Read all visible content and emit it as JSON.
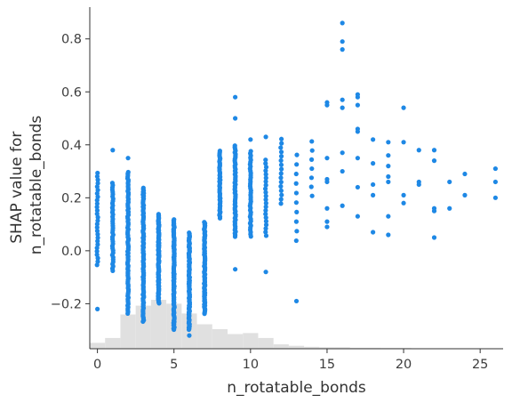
{
  "chart_data": {
    "type": "scatter",
    "xlabel": "n_rotatable_bonds",
    "ylabel_lines": [
      "SHAP value for",
      "n_rotatable_bonds"
    ],
    "xlim": [
      -0.5,
      26.5
    ],
    "ylim": [
      -0.37,
      0.92
    ],
    "x_ticks": [
      0,
      5,
      10,
      15,
      20,
      25
    ],
    "x_tick_labels": [
      "0",
      "5",
      "10",
      "15",
      "20",
      "25"
    ],
    "y_ticks": [
      -0.2,
      0.0,
      0.2,
      0.4,
      0.6,
      0.8
    ],
    "y_tick_labels": [
      "−0.2",
      "0.0",
      "0.2",
      "0.4",
      "0.6",
      "0.8"
    ],
    "grid": false,
    "point_color": "#1e88e5",
    "histogram_color": "#e0e0e0",
    "point_groups": [
      {
        "x": 0,
        "y_min": -0.06,
        "y_max": 0.3,
        "n": 28,
        "outliers": [
          -0.22
        ]
      },
      {
        "x": 1,
        "y_min": -0.08,
        "y_max": 0.26,
        "n": 40,
        "outliers": [
          0.38
        ]
      },
      {
        "x": 2,
        "y_min": -0.24,
        "y_max": 0.3,
        "n": 90,
        "outliers": [
          0.35
        ]
      },
      {
        "x": 3,
        "y_min": -0.27,
        "y_max": 0.24,
        "n": 100,
        "outliers": []
      },
      {
        "x": 4,
        "y_min": -0.2,
        "y_max": 0.14,
        "n": 100,
        "outliers": []
      },
      {
        "x": 5,
        "y_min": -0.3,
        "y_max": 0.12,
        "n": 100,
        "outliers": []
      },
      {
        "x": 6,
        "y_min": -0.3,
        "y_max": 0.07,
        "n": 90,
        "outliers": [
          -0.32
        ]
      },
      {
        "x": 7,
        "y_min": -0.24,
        "y_max": 0.11,
        "n": 80,
        "outliers": []
      },
      {
        "x": 8,
        "y_min": 0.12,
        "y_max": 0.38,
        "n": 45,
        "outliers": []
      },
      {
        "x": 9,
        "y_min": 0.05,
        "y_max": 0.4,
        "n": 55,
        "outliers": [
          0.5,
          0.58,
          -0.07
        ]
      },
      {
        "x": 10,
        "y_min": 0.05,
        "y_max": 0.38,
        "n": 40,
        "outliers": [
          0.42
        ]
      },
      {
        "x": 11,
        "y_min": 0.05,
        "y_max": 0.35,
        "n": 22,
        "outliers": [
          0.43,
          -0.08
        ]
      },
      {
        "x": 12,
        "y_min": 0.17,
        "y_max": 0.43,
        "n": 16,
        "outliers": []
      },
      {
        "x": 13,
        "y_min": 0.02,
        "y_max": 0.38,
        "n": 10,
        "outliers": [
          -0.19
        ]
      },
      {
        "x": 14,
        "y_min": 0.19,
        "y_max": 0.43,
        "n": 7,
        "outliers": []
      }
    ],
    "sparse_points": [
      [
        15,
        0.56
      ],
      [
        15,
        0.55
      ],
      [
        15,
        0.35
      ],
      [
        15,
        0.27
      ],
      [
        15,
        0.26
      ],
      [
        15,
        0.16
      ],
      [
        15,
        0.11
      ],
      [
        15,
        0.09
      ],
      [
        16,
        0.86
      ],
      [
        16,
        0.79
      ],
      [
        16,
        0.76
      ],
      [
        16,
        0.57
      ],
      [
        16,
        0.54
      ],
      [
        16,
        0.37
      ],
      [
        16,
        0.3
      ],
      [
        16,
        0.17
      ],
      [
        17,
        0.59
      ],
      [
        17,
        0.58
      ],
      [
        17,
        0.55
      ],
      [
        17,
        0.46
      ],
      [
        17,
        0.45
      ],
      [
        17,
        0.35
      ],
      [
        17,
        0.24
      ],
      [
        17,
        0.13
      ],
      [
        18,
        0.42
      ],
      [
        18,
        0.33
      ],
      [
        18,
        0.25
      ],
      [
        18,
        0.21
      ],
      [
        18,
        0.07
      ],
      [
        19,
        0.41
      ],
      [
        19,
        0.36
      ],
      [
        19,
        0.32
      ],
      [
        19,
        0.28
      ],
      [
        19,
        0.26
      ],
      [
        19,
        0.13
      ],
      [
        19,
        0.06
      ],
      [
        20,
        0.54
      ],
      [
        20,
        0.41
      ],
      [
        20,
        0.21
      ],
      [
        20,
        0.18
      ],
      [
        21,
        0.38
      ],
      [
        21,
        0.26
      ],
      [
        21,
        0.25
      ],
      [
        22,
        0.38
      ],
      [
        22,
        0.34
      ],
      [
        22,
        0.16
      ],
      [
        22,
        0.15
      ],
      [
        22,
        0.05
      ],
      [
        23,
        0.26
      ],
      [
        23,
        0.16
      ],
      [
        24,
        0.29
      ],
      [
        24,
        0.21
      ],
      [
        26,
        0.31
      ],
      [
        26,
        0.26
      ],
      [
        26,
        0.2
      ]
    ],
    "histogram": {
      "bin_edges": [
        -0.5,
        0.5,
        1.5,
        2.5,
        3.5,
        4.5,
        5.5,
        6.5,
        7.5,
        8.5,
        9.5,
        10.5,
        11.5,
        12.5,
        13.5,
        14.5,
        15.5,
        16.5,
        17.5,
        18.5,
        19.5,
        20.5,
        21.5,
        22.5,
        23.5,
        24.5,
        25.5,
        26.5
      ],
      "relative_heights": [
        0.12,
        0.22,
        0.7,
        0.88,
        1.0,
        0.92,
        0.72,
        0.5,
        0.4,
        0.3,
        0.32,
        0.22,
        0.09,
        0.06,
        0.04,
        0.03,
        0.03,
        0.02,
        0.02,
        0.015,
        0.015,
        0.01,
        0.01,
        0.005,
        0.005,
        0.005,
        0.005
      ]
    }
  }
}
